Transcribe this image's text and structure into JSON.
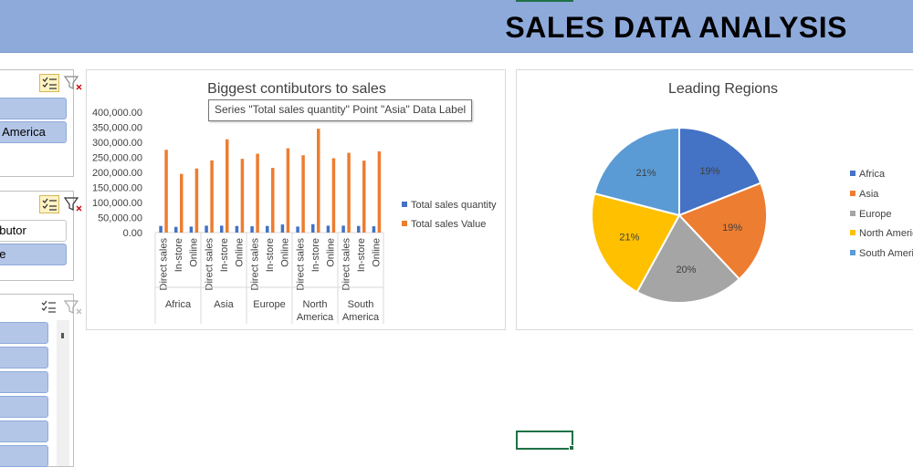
{
  "header": {
    "title": "SALES DATA ANALYSIS"
  },
  "slicers": {
    "region": {
      "items": [
        "",
        "h America"
      ]
    },
    "distributor": {
      "items": [
        "ributor",
        "ne"
      ]
    },
    "third": {
      "item_count": 6
    }
  },
  "bar_chart": {
    "title": "Biggest contibutors to sales",
    "tooltip": "Series \"Total sales quantity\" Point \"Asia\" Data Label",
    "y_ticks": [
      "400,000.00",
      "350,000.00",
      "300,000.00",
      "250,000.00",
      "200,000.00",
      "150,000.00",
      "100,000.00",
      "50,000.00",
      "0.00"
    ],
    "legend": [
      {
        "label": "Total sales quantity",
        "color": "#4472c4"
      },
      {
        "label": "Total sales Value",
        "color": "#ed7d31"
      }
    ],
    "sub_labels": [
      "Direct sales",
      "In-store",
      "Online"
    ],
    "groups": [
      "Africa",
      "Asia",
      "Europe",
      "North\nAmerica",
      "South\nAmerica"
    ]
  },
  "pie_chart": {
    "title": "Leading Regions",
    "legend": [
      "Africa",
      "Asia",
      "Europe",
      "North Americ",
      "South Americ"
    ]
  },
  "chart_data": [
    {
      "type": "bar",
      "title": "Biggest contibutors to sales",
      "categories": [
        "Africa Direct sales",
        "Africa In-store",
        "Africa Online",
        "Asia Direct sales",
        "Asia In-store",
        "Asia Online",
        "Europe Direct sales",
        "Europe In-store",
        "Europe Online",
        "North America Direct sales",
        "North America In-store",
        "North America Online",
        "South America Direct sales",
        "South America In-store",
        "South America Online"
      ],
      "ylim": [
        0,
        400000
      ],
      "series": [
        {
          "name": "Total sales quantity",
          "color": "#4472c4",
          "values": [
            22000,
            19000,
            20000,
            23000,
            23000,
            22000,
            21000,
            22000,
            27000,
            20000,
            28000,
            23000,
            23000,
            22000,
            21000
          ]
        },
        {
          "name": "Total sales Value",
          "color": "#ed7d31",
          "values": [
            275000,
            195000,
            213000,
            240000,
            310000,
            245000,
            262000,
            215000,
            280000,
            257000,
            345000,
            247000,
            265000,
            239000,
            270000
          ]
        }
      ],
      "legend_position": "right"
    },
    {
      "type": "pie",
      "title": "Leading Regions",
      "labels": [
        "Africa",
        "Asia",
        "Europe",
        "North America",
        "South America"
      ],
      "values": [
        19,
        19,
        20,
        21,
        21
      ],
      "colors": [
        "#4472c4",
        "#ed7d31",
        "#a5a5a5",
        "#ffc000",
        "#5b9bd5"
      ],
      "legend_position": "right"
    }
  ]
}
